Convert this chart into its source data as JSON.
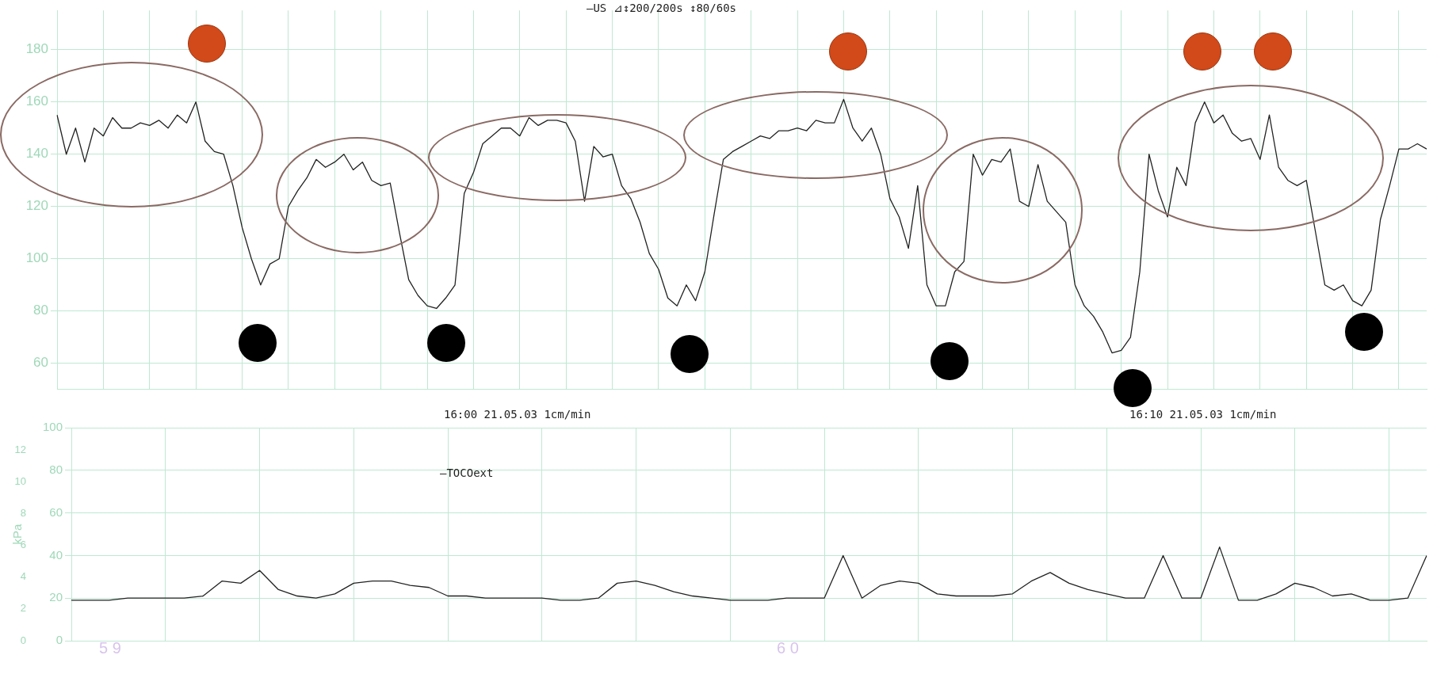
{
  "chart_data": [
    {
      "type": "line",
      "annotations": [
        "—US ⊿↕200/200s ↕80/60s"
      ],
      "categories": [
        null,
        null,
        null,
        null,
        null,
        null,
        null,
        null,
        null,
        null,
        null,
        null,
        null,
        null,
        null,
        null,
        null,
        null,
        null,
        null,
        null,
        null,
        null,
        null,
        null,
        null,
        null,
        null,
        null,
        null,
        null,
        null,
        null,
        null,
        null,
        null,
        null,
        null,
        null,
        null,
        null,
        null,
        null,
        null,
        null,
        null,
        null,
        null,
        null,
        null,
        null,
        null,
        null,
        null,
        null,
        null,
        null,
        null,
        null,
        null,
        null,
        null,
        null,
        null,
        null,
        null,
        null,
        null,
        null,
        null,
        null,
        null,
        null,
        null,
        null,
        null,
        null,
        null,
        null,
        null,
        null,
        null,
        null,
        null,
        null,
        null,
        null,
        null,
        null,
        null,
        null,
        null,
        null,
        null,
        null,
        null,
        null,
        null,
        null,
        null,
        null,
        null,
        null,
        null,
        null,
        null,
        null,
        null,
        null,
        null,
        null,
        null,
        null,
        null,
        null,
        null,
        null,
        null,
        null,
        null,
        null,
        null,
        null,
        null,
        null,
        null,
        null,
        null,
        null,
        null,
        null,
        null,
        null,
        null,
        null,
        null,
        null,
        null,
        null,
        null,
        null,
        null,
        null,
        null,
        null,
        null,
        null,
        null,
        null
      ],
      "series": [
        {
          "color": "#222222",
          "values": [
            155,
            140,
            150,
            137,
            150,
            147,
            154,
            150,
            150,
            152,
            151,
            153,
            150,
            155,
            152,
            160,
            145,
            141,
            140,
            128,
            112,
            100,
            90,
            98,
            100,
            120,
            126,
            131,
            138,
            135,
            137,
            140,
            134,
            137,
            130,
            128,
            129,
            110,
            92,
            86,
            82,
            81,
            85,
            90,
            125,
            133,
            144,
            147,
            150,
            150,
            147,
            154,
            151,
            153,
            153,
            152,
            145,
            122,
            143,
            139,
            140,
            128,
            123,
            114,
            102,
            96,
            85,
            82,
            90,
            84,
            95,
            117,
            138,
            141,
            143,
            145,
            147,
            146,
            149,
            149,
            150,
            149,
            153,
            152,
            152,
            161,
            150,
            145,
            150,
            140,
            123,
            116,
            104,
            128,
            90,
            82,
            82,
            95,
            99,
            140,
            132,
            138,
            137,
            142,
            122,
            120,
            136,
            122,
            118,
            114,
            90,
            82,
            78,
            72,
            64,
            65,
            70,
            95,
            140,
            126,
            116,
            135,
            128,
            152,
            160,
            152,
            155,
            148,
            145,
            146,
            138,
            155,
            135,
            130,
            128,
            130,
            110,
            90,
            88,
            90,
            84,
            82,
            88,
            115,
            128,
            142,
            142,
            144,
            142
          ]
        }
      ],
      "ylim": [
        50,
        195
      ],
      "yticks": [
        60,
        80,
        100,
        120,
        140,
        160,
        180
      ],
      "grid": true,
      "tick_labels": "y"
    },
    {
      "type": "line",
      "y2label": "kPa",
      "annotations": [
        "16:00  21.05.03  1cm/min",
        "16:10  21.05.03  1cm/min",
        "—TOCOext",
        "5 9",
        "6 0"
      ],
      "categories": [
        null,
        null,
        null,
        null,
        null,
        null,
        null,
        null,
        null,
        null,
        null,
        null,
        null,
        null,
        null,
        null,
        null,
        null,
        null,
        null,
        null,
        null,
        null,
        null,
        null,
        null,
        null,
        null,
        null,
        null,
        null,
        null,
        null,
        null,
        null,
        null,
        null,
        null,
        null,
        null,
        null,
        null,
        null,
        null,
        null,
        null,
        null,
        null,
        null,
        null,
        null,
        null,
        null,
        null,
        null,
        null,
        null,
        null,
        null,
        null,
        null,
        null,
        null,
        null,
        null,
        null,
        null,
        null,
        null,
        null,
        null,
        null,
        null
      ],
      "series": [
        {
          "color": "#222222",
          "values": [
            19,
            19,
            19,
            20,
            20,
            20,
            20,
            21,
            28,
            27,
            33,
            24,
            21,
            20,
            22,
            27,
            28,
            28,
            26,
            25,
            21,
            21,
            20,
            20,
            20,
            20,
            19,
            19,
            20,
            27,
            28,
            26,
            23,
            21,
            20,
            19,
            19,
            19,
            20,
            20,
            20,
            40,
            20,
            26,
            28,
            27,
            22,
            21,
            21,
            21,
            22,
            28,
            32,
            27,
            24,
            22,
            20,
            20,
            40,
            20,
            20,
            44,
            19,
            19,
            22,
            27,
            25,
            21,
            22,
            19,
            19,
            20,
            40
          ]
        }
      ],
      "ylim": [
        0,
        100
      ],
      "yticks": [
        0,
        20,
        40,
        60,
        80,
        100
      ],
      "y2lim": [
        0,
        13.4
      ],
      "y2ticks": [
        0,
        2,
        4,
        6,
        8,
        10,
        12
      ],
      "grid": true,
      "tick_labels": "y"
    }
  ]
}
